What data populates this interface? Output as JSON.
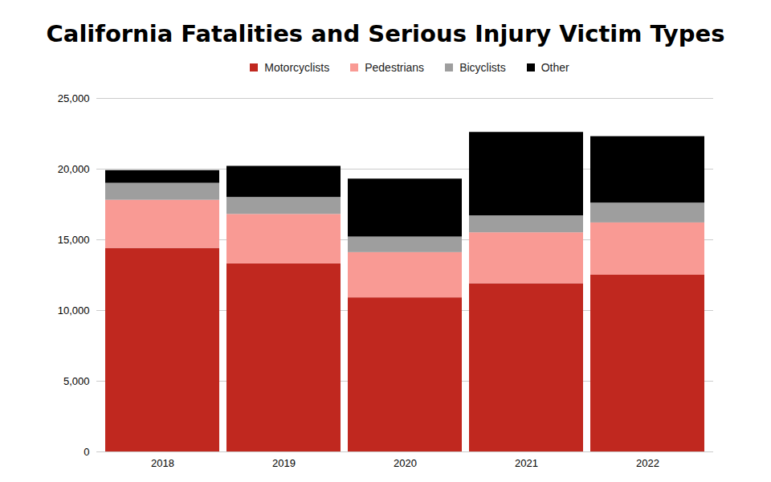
{
  "chart_data": {
    "type": "bar",
    "title": "California Fatalities and Serious Injury Victim Types",
    "categories": [
      "2018",
      "2019",
      "2020",
      "2021",
      "2022"
    ],
    "series": [
      {
        "name": "Motorcyclists",
        "color": "#c0281f",
        "values": [
          14400,
          13300,
          10900,
          11900,
          12500
        ]
      },
      {
        "name": "Pedestrians",
        "color": "#f99a94",
        "values": [
          3400,
          3500,
          3200,
          3600,
          3700
        ]
      },
      {
        "name": "Bicyclists",
        "color": "#9e9e9e",
        "values": [
          1200,
          1200,
          1100,
          1200,
          1400
        ]
      },
      {
        "name": "Other",
        "color": "#000000",
        "values": [
          900,
          2200,
          4100,
          5900,
          4700
        ]
      }
    ],
    "ylim": [
      0,
      25000
    ],
    "yticks": [
      0,
      {
        "value": 5000,
        "label": "5,000"
      },
      {
        "value": 10000,
        "label": "10,000"
      },
      {
        "value": 15000,
        "label": "15,000"
      },
      {
        "value": 20000,
        "label": "20,000"
      },
      {
        "value": 25000,
        "label": "25,000"
      }
    ],
    "grid": true,
    "stacked": true,
    "legend": "top"
  }
}
